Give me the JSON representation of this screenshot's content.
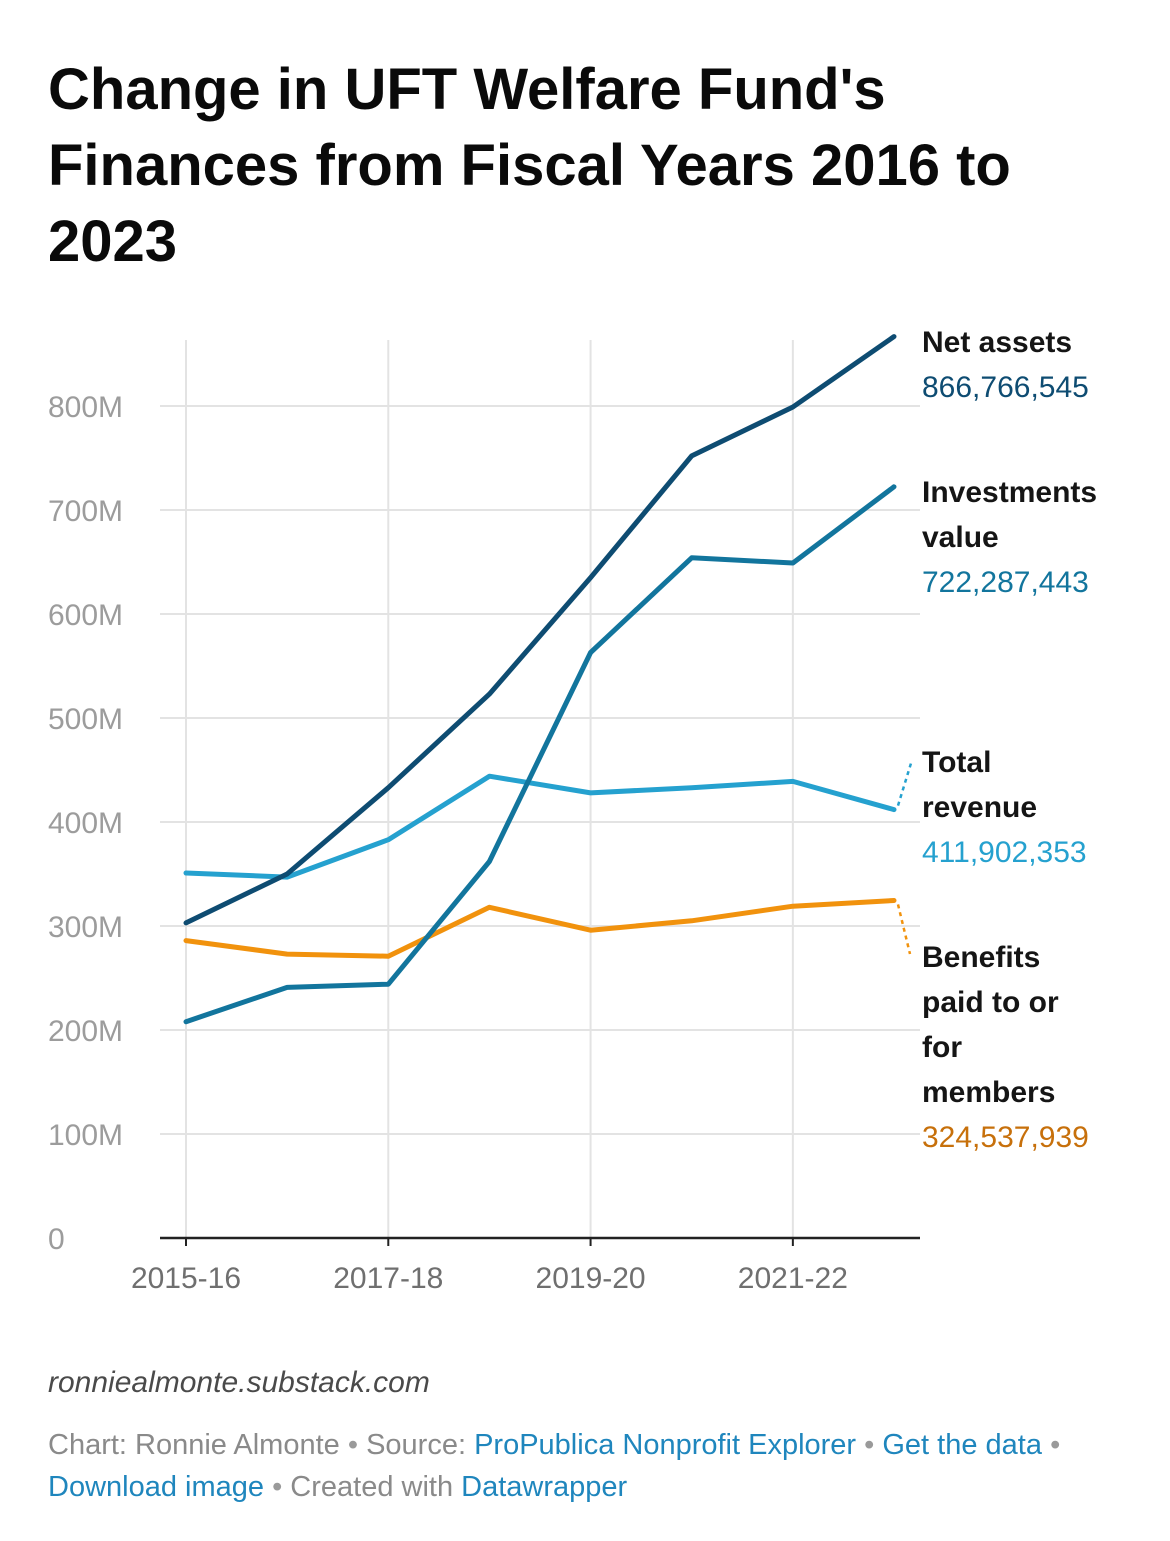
{
  "title": "Change in UFT Welfare Fund's Finances from Fiscal Years 2016 to 2023",
  "byline": "ronniealmonte.substack.com",
  "notes": {
    "chart_prefix": "Chart: Ronnie Almonte",
    "source_prefix": "Source:",
    "source_link": "ProPublica Nonprofit Explorer",
    "get_data": "Get the data",
    "download": "Download image",
    "created_prefix": "Created with",
    "created_link": "Datawrapper",
    "sep": "•"
  },
  "colors": {
    "net_assets": "#0e4c72",
    "investments": "#12759d",
    "revenue": "#25a1cf",
    "benefits": "#f1920d",
    "benefits_value": "#c7700b",
    "grid": "#e3e3e3",
    "axis_text": "#9c9c9c",
    "x_axis_text": "#6f6f6f",
    "link": "#1f86bd"
  },
  "chart_data": {
    "type": "line",
    "x": [
      "2015-16",
      "2016-17",
      "2017-18",
      "2018-19",
      "2019-20",
      "2020-21",
      "2021-22",
      "2022-23"
    ],
    "x_tick_labels": [
      "2015-16",
      "2017-18",
      "2019-20",
      "2021-22"
    ],
    "y_tick_labels": [
      "0",
      "100M",
      "200M",
      "300M",
      "400M",
      "500M",
      "600M",
      "700M",
      "800M"
    ],
    "ylim": [
      0,
      870000000
    ],
    "grid": true,
    "legend": "direct labels at line ends (right)",
    "series": [
      {
        "key": "net_assets",
        "label_lines": [
          "Net assets"
        ],
        "end_value": "866,766,545",
        "values": [
          303000000,
          350000000,
          433000000,
          523000000,
          635000000,
          752000000,
          799000000,
          866766545
        ]
      },
      {
        "key": "investments",
        "label_lines": [
          "Investments",
          "value"
        ],
        "end_value": "722,287,443",
        "values": [
          208000000,
          241000000,
          244000000,
          362000000,
          563000000,
          654000000,
          649000000,
          722287443
        ]
      },
      {
        "key": "revenue",
        "label_lines": [
          "Total",
          "revenue"
        ],
        "end_value": "411,902,353",
        "values": [
          351000000,
          347000000,
          383000000,
          444000000,
          428000000,
          433000000,
          439000000,
          411902353
        ]
      },
      {
        "key": "benefits",
        "label_lines": [
          "Benefits",
          "paid to or",
          "for",
          "members"
        ],
        "end_value": "324,537,939",
        "values": [
          286000000,
          273000000,
          271000000,
          318000000,
          296000000,
          305000000,
          319000000,
          324537939
        ]
      }
    ]
  }
}
